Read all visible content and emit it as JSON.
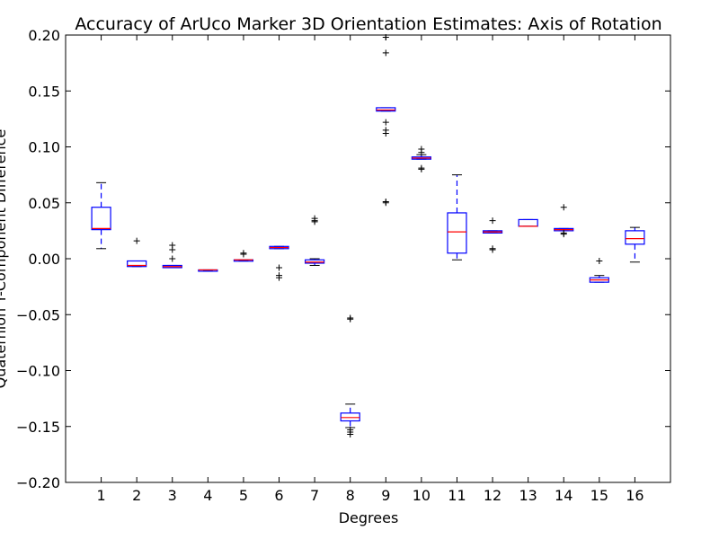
{
  "chart_data": {
    "type": "box",
    "title": "Accuracy of ArUco Marker 3D Orientation Estimates: Axis of Rotation",
    "xlabel": "Degrees",
    "ylabel": "Quaternion Y-Component Difference",
    "categories": [
      "1",
      "2",
      "3",
      "4",
      "5",
      "6",
      "7",
      "8",
      "9",
      "10",
      "11",
      "12",
      "13",
      "14",
      "15",
      "16"
    ],
    "ylim": [
      -0.2,
      0.2
    ],
    "yticks": [
      -0.2,
      -0.15,
      -0.1,
      -0.05,
      0.0,
      0.05,
      0.1,
      0.15,
      0.2
    ],
    "ytick_labels": [
      "−0.20",
      "−0.15",
      "−0.10",
      "−0.05",
      "0.00",
      "0.05",
      "0.10",
      "0.15",
      "0.20"
    ],
    "box_color": "#0000ff",
    "median_color": "#ff0000",
    "boxes": [
      {
        "label": "1",
        "whislo": 0.009,
        "q1": 0.026,
        "med": 0.027,
        "q3": 0.046,
        "whishi": 0.068,
        "fliers": []
      },
      {
        "label": "2",
        "whislo": -0.007,
        "q1": -0.007,
        "med": -0.006,
        "q3": -0.002,
        "whishi": -0.002,
        "fliers": [
          0.016
        ]
      },
      {
        "label": "3",
        "whislo": -0.008,
        "q1": -0.008,
        "med": -0.007,
        "q3": -0.006,
        "whishi": -0.006,
        "fliers": [
          0.012,
          0.008,
          0.0
        ]
      },
      {
        "label": "4",
        "whislo": -0.011,
        "q1": -0.011,
        "med": -0.01,
        "q3": -0.01,
        "whishi": -0.01,
        "fliers": []
      },
      {
        "label": "5",
        "whislo": -0.002,
        "q1": -0.002,
        "med": -0.001,
        "q3": -0.001,
        "whishi": -0.001,
        "fliers": [
          0.005,
          0.004
        ]
      },
      {
        "label": "6",
        "whislo": 0.009,
        "q1": 0.009,
        "med": 0.01,
        "q3": 0.011,
        "whishi": 0.011,
        "fliers": [
          -0.008,
          -0.015,
          -0.017
        ]
      },
      {
        "label": "7",
        "whislo": -0.006,
        "q1": -0.004,
        "med": -0.003,
        "q3": -0.001,
        "whishi": 0.0,
        "fliers": [
          0.036,
          0.034,
          0.033
        ]
      },
      {
        "label": "8",
        "whislo": -0.151,
        "q1": -0.145,
        "med": -0.142,
        "q3": -0.138,
        "whishi": -0.13,
        "fliers": [
          -0.053,
          -0.054,
          -0.153,
          -0.155,
          -0.157
        ]
      },
      {
        "label": "9",
        "whislo": 0.132,
        "q1": 0.132,
        "med": 0.133,
        "q3": 0.135,
        "whishi": 0.135,
        "fliers": [
          0.198,
          0.184,
          0.122,
          0.115,
          0.112,
          0.051,
          0.05
        ]
      },
      {
        "label": "10",
        "whislo": 0.089,
        "q1": 0.089,
        "med": 0.09,
        "q3": 0.091,
        "whishi": 0.093,
        "fliers": [
          0.098,
          0.095,
          0.081,
          0.08
        ]
      },
      {
        "label": "11",
        "whislo": -0.001,
        "q1": 0.005,
        "med": 0.024,
        "q3": 0.041,
        "whishi": 0.075,
        "fliers": []
      },
      {
        "label": "12",
        "whislo": 0.023,
        "q1": 0.023,
        "med": 0.024,
        "q3": 0.025,
        "whishi": 0.025,
        "fliers": [
          0.034,
          0.009,
          0.008
        ]
      },
      {
        "label": "13",
        "whislo": 0.029,
        "q1": 0.029,
        "med": 0.029,
        "q3": 0.035,
        "whishi": 0.035,
        "fliers": []
      },
      {
        "label": "14",
        "whislo": 0.025,
        "q1": 0.025,
        "med": 0.026,
        "q3": 0.027,
        "whishi": 0.027,
        "fliers": [
          0.046,
          0.023,
          0.022
        ]
      },
      {
        "label": "15",
        "whislo": -0.021,
        "q1": -0.021,
        "med": -0.019,
        "q3": -0.017,
        "whishi": -0.015,
        "fliers": [
          -0.002
        ]
      },
      {
        "label": "16",
        "whislo": -0.003,
        "q1": 0.013,
        "med": 0.018,
        "q3": 0.025,
        "whishi": 0.028,
        "fliers": []
      }
    ]
  }
}
